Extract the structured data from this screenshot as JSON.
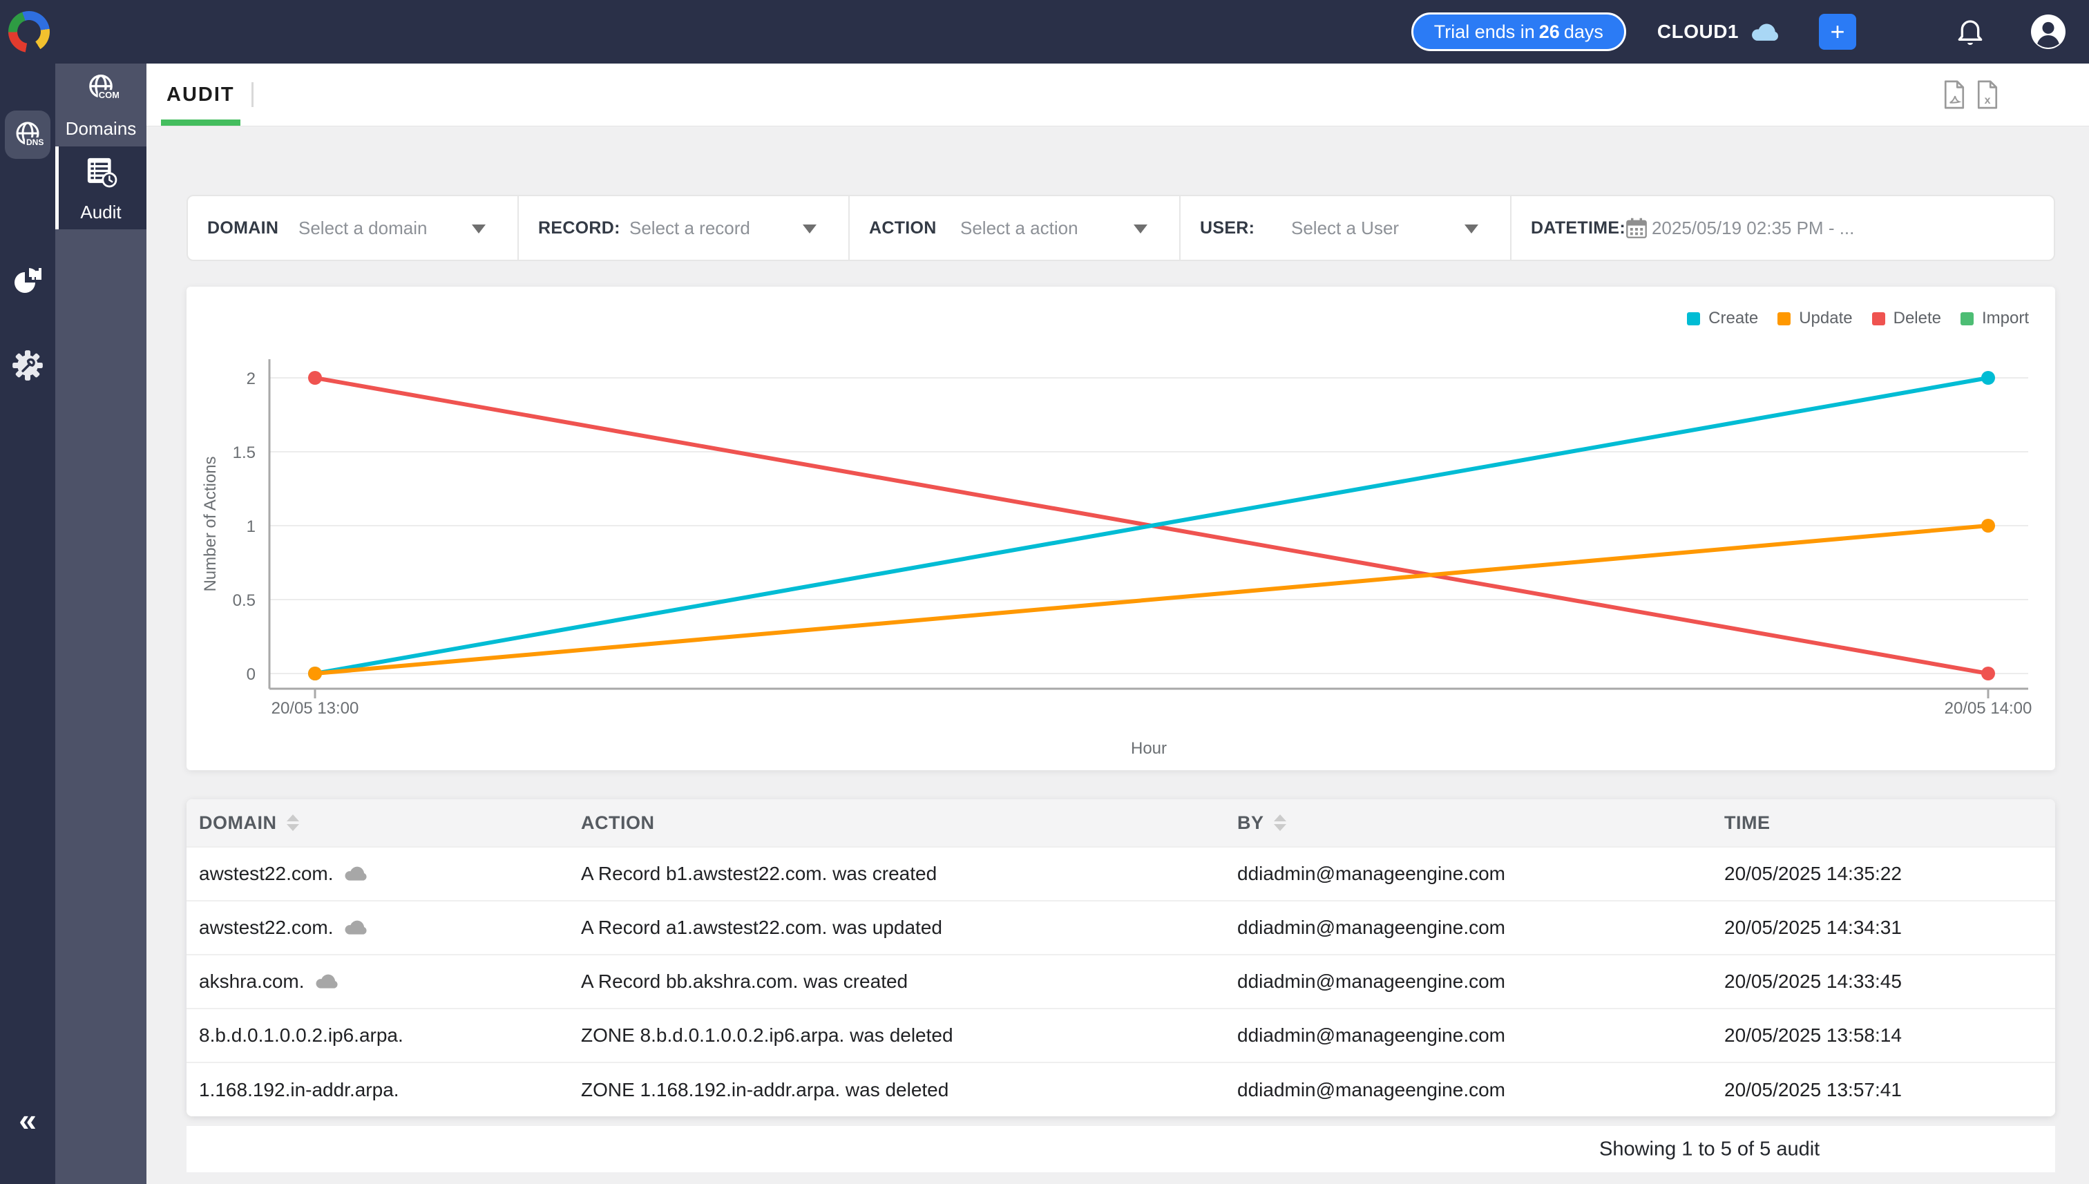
{
  "topbar": {
    "trial_prefix": "Trial ends in",
    "trial_days": "26",
    "trial_suffix": "days",
    "account_name": "CLOUD1",
    "add_label": "+"
  },
  "sidebar": {
    "items": [
      {
        "label": "Domains",
        "active": false
      },
      {
        "label": "Audit",
        "active": true
      }
    ],
    "collapse_glyph": "«"
  },
  "header": {
    "tab": "AUDIT"
  },
  "filters": [
    {
      "label": "DOMAIN",
      "placeholder": "Select a domain",
      "caret": true,
      "calendar": false
    },
    {
      "label": "RECORD:",
      "placeholder": "Select a record",
      "caret": true,
      "calendar": false
    },
    {
      "label": "ACTION",
      "placeholder": "Select a action",
      "caret": true,
      "calendar": false
    },
    {
      "label": "USER:",
      "placeholder": "Select a User",
      "caret": true,
      "calendar": false
    },
    {
      "label": "DATETIME:",
      "value": "2025/05/19 02:35 PM - ...",
      "caret": false,
      "calendar": true
    }
  ],
  "chart_data": {
    "type": "line",
    "title": "",
    "xlabel": "Hour",
    "ylabel": "Number of Actions",
    "x": [
      "20/05 13:00",
      "20/05 14:00"
    ],
    "yticks": [
      0,
      0.5,
      1,
      1.5,
      2
    ],
    "ylim": [
      0,
      2
    ],
    "grid": true,
    "legend_position": "top-right",
    "series": [
      {
        "name": "Create",
        "color": "#00bcd4",
        "values": [
          0,
          2
        ]
      },
      {
        "name": "Update",
        "color": "#ff9800",
        "values": [
          0,
          1
        ]
      },
      {
        "name": "Delete",
        "color": "#ef5350",
        "values": [
          2,
          0
        ]
      },
      {
        "name": "Import",
        "color": "#4dbd74",
        "values": []
      }
    ]
  },
  "table": {
    "columns": [
      {
        "label": "DOMAIN",
        "sortable": true
      },
      {
        "label": "ACTION",
        "sortable": false
      },
      {
        "label": "BY",
        "sortable": true
      },
      {
        "label": "TIME",
        "sortable": false
      }
    ],
    "rows": [
      {
        "domain": "awstest22.com.",
        "cloud": true,
        "action": "A Record b1.awstest22.com. was created",
        "by": "ddiadmin@manageengine.com",
        "time": "20/05/2025 14:35:22"
      },
      {
        "domain": "awstest22.com.",
        "cloud": true,
        "action": "A Record a1.awstest22.com. was updated",
        "by": "ddiadmin@manageengine.com",
        "time": "20/05/2025 14:34:31"
      },
      {
        "domain": "akshra.com.",
        "cloud": true,
        "action": "A Record bb.akshra.com. was created",
        "by": "ddiadmin@manageengine.com",
        "time": "20/05/2025 14:33:45"
      },
      {
        "domain": "8.b.d.0.1.0.0.2.ip6.arpa.",
        "cloud": false,
        "action": "ZONE 8.b.d.0.1.0.0.2.ip6.arpa. was deleted",
        "by": "ddiadmin@manageengine.com",
        "time": "20/05/2025 13:58:14"
      },
      {
        "domain": "1.168.192.in-addr.arpa.",
        "cloud": false,
        "action": "ZONE 1.168.192.in-addr.arpa. was deleted",
        "by": "ddiadmin@manageengine.com",
        "time": "20/05/2025 13:57:41"
      }
    ]
  },
  "footer": {
    "summary": "Showing 1 to 5 of 5 audit"
  }
}
